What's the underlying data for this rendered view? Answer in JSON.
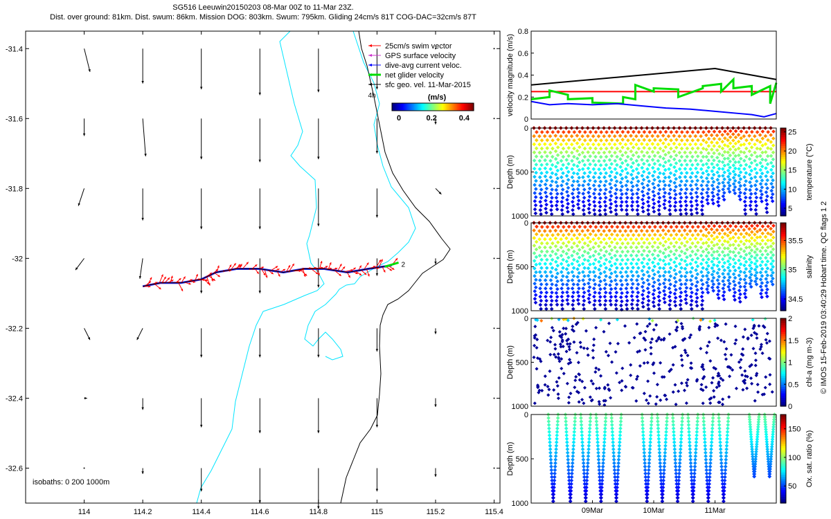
{
  "header": {
    "title_line1": "SG516 Leeuwin20150203 08-Mar 00Z to 11-Mar 23Z.",
    "title_line2": "Dist. over ground: 81km. Dist. swum: 86km. Mission DOG: 803km. Swum: 795km. Gliding 24cm/s 81T COG-DAC=32cm/s 87T"
  },
  "colors": {
    "track": "#ff0000",
    "dac": "#0000ff",
    "net": "#00dd00",
    "isobath": "#00e5ff",
    "coast": "#000000"
  },
  "chart_data": [
    {
      "type": "scatter",
      "name": "map",
      "xlim": [
        113.8,
        115.42
      ],
      "ylim": [
        -32.7,
        -31.35
      ],
      "xticks": [
        "114",
        "114.2",
        "114.4",
        "114.6",
        "114.8",
        "115",
        "115.2",
        "115.4"
      ],
      "xtick_values": [
        114,
        114.2,
        114.4,
        114.6,
        114.8,
        115,
        115.2,
        115.4
      ],
      "yticks": [
        "-31.4",
        "-31.6",
        "-31.8",
        "-32",
        "-32.2",
        "-32.4",
        "-32.6"
      ],
      "ytick_values": [
        -31.4,
        -31.6,
        -31.8,
        -32,
        -32.2,
        -32.4,
        -32.6
      ],
      "legend": [
        {
          "label": "25cm/s swim vector",
          "color": "#ff0000"
        },
        {
          "label": "GPS surface velocity",
          "color": "#cc33cc"
        },
        {
          "label": "dive-avg current veloc.",
          "color": "#0000ff"
        },
        {
          "label": "net glider velocity",
          "color": "#00dd00"
        },
        {
          "label": "sfc geo. vel. 11-Mar-2015",
          "color": "#000000"
        }
      ],
      "colorbar": {
        "label": "(m/s)",
        "ticks": [
          "0",
          "0.2",
          "0.4"
        ],
        "range": [
          0,
          0.5
        ]
      },
      "annotations": {
        "isobaths": "isobaths: 0   200   1000m",
        "label_4h": "4h",
        "label_2": "2"
      },
      "track": {
        "lon": [
          114.2,
          114.26,
          114.33,
          114.4,
          114.45,
          114.52,
          114.6,
          114.68,
          114.75,
          114.82,
          114.9,
          114.97,
          115.05
        ],
        "lat": [
          -32.08,
          -32.07,
          -32.07,
          -32.06,
          -32.04,
          -32.03,
          -32.03,
          -32.04,
          -32.03,
          -32.03,
          -32.04,
          -32.03,
          -32.02
        ]
      },
      "geo_vectors": {
        "lons": [
          114,
          114.2,
          114.4,
          114.6,
          114.8,
          115,
          115.2,
          115.4
        ],
        "lats": [
          -31.4,
          -31.6,
          -31.8,
          -32,
          -32.2,
          -32.4,
          -32.6
        ],
        "u": [
          [
            0.02,
            0.0,
            0.0,
            0.0,
            0.0,
            0.0,
            0.0,
            0.0
          ],
          [
            0.0,
            0.01,
            0.0,
            0.0,
            0.0,
            0.0,
            0.0,
            0.0
          ],
          [
            -0.02,
            0.0,
            0.0,
            0.0,
            0.0,
            0.0,
            0.02,
            0.0
          ],
          [
            -0.03,
            -0.01,
            0.0,
            0.0,
            0.0,
            0.0,
            0.0,
            0.0
          ],
          [
            0.02,
            -0.02,
            0.0,
            0.0,
            0.0,
            0.0,
            0.0,
            0.0
          ],
          [
            0.01,
            0.0,
            0.0,
            0.0,
            0.0,
            0.0,
            0.0,
            0.0
          ],
          [
            0.0,
            0.0,
            0.0,
            0.0,
            0.0,
            0.0,
            0.0,
            0.0
          ]
        ],
        "v": [
          [
            -0.08,
            -0.12,
            -0.14,
            -0.16,
            -0.15,
            -0.14,
            0.0,
            0.0
          ],
          [
            -0.06,
            -0.13,
            -0.14,
            -0.15,
            -0.14,
            -0.12,
            -0.02,
            0.0
          ],
          [
            -0.06,
            -0.11,
            -0.14,
            -0.14,
            -0.13,
            -0.1,
            -0.02,
            0.0
          ],
          [
            -0.04,
            -0.07,
            -0.12,
            -0.12,
            -0.1,
            -0.06,
            -0.02,
            0.0
          ],
          [
            -0.04,
            -0.04,
            -0.1,
            -0.1,
            -0.1,
            -0.08,
            -0.02,
            0.0
          ],
          [
            0.0,
            -0.04,
            -0.1,
            -0.12,
            -0.12,
            -0.1,
            -0.03,
            0.0
          ],
          [
            0.0,
            -0.02,
            -0.08,
            -0.12,
            -0.14,
            -0.08,
            -0.03,
            0.0
          ]
        ]
      }
    },
    {
      "type": "line",
      "name": "velocity",
      "ylabel": "velocity magnitude (m/s)",
      "ylim": [
        0,
        0.8
      ],
      "yticks": [
        "0",
        "0.2",
        "0.4",
        "0.6",
        "0.8"
      ],
      "ytick_values": [
        0,
        0.2,
        0.4,
        0.6,
        0.8
      ],
      "xlim": [
        0,
        4
      ],
      "series": [
        {
          "name": "sfc",
          "color": "#000000",
          "x": [
            0,
            3.0,
            4.0
          ],
          "y": [
            0.31,
            0.46,
            0.36
          ]
        },
        {
          "name": "swim",
          "color": "#ff0000",
          "x": [
            0,
            4.0
          ],
          "y": [
            0.25,
            0.25
          ]
        },
        {
          "name": "net",
          "color": "#00dd00",
          "x": [
            0,
            0.3,
            0.3,
            0.6,
            0.6,
            1.0,
            1.0,
            1.5,
            1.5,
            1.7,
            1.7,
            2.0,
            2.0,
            2.4,
            2.4,
            2.8,
            2.8,
            3.1,
            3.1,
            3.3,
            3.3,
            3.6,
            3.6,
            3.9,
            3.9,
            4.0
          ],
          "y": [
            0.18,
            0.2,
            0.26,
            0.22,
            0.18,
            0.19,
            0.15,
            0.14,
            0.2,
            0.18,
            0.31,
            0.25,
            0.28,
            0.27,
            0.2,
            0.28,
            0.3,
            0.32,
            0.25,
            0.36,
            0.28,
            0.3,
            0.22,
            0.3,
            0.14,
            0.33
          ]
        },
        {
          "name": "dac",
          "color": "#0000ff",
          "x": [
            0,
            0.3,
            0.6,
            1.0,
            1.4,
            1.8,
            2.2,
            2.6,
            3.0,
            3.4,
            3.6,
            3.8,
            4.0
          ],
          "y": [
            0.16,
            0.13,
            0.14,
            0.13,
            0.14,
            0.12,
            0.1,
            0.09,
            0.07,
            0.05,
            0.04,
            0.02,
            0.05
          ]
        }
      ]
    },
    {
      "type": "scatter",
      "name": "temperature",
      "ylabel": "Depth (m)",
      "cbar_label": "temperature (°C)",
      "cbar_ticks": [
        "5",
        "10",
        "15",
        "20",
        "25"
      ],
      "cbar_tick_values": [
        5,
        10,
        15,
        20,
        25
      ],
      "cbar_range": [
        3,
        26
      ],
      "ylim": [
        0,
        1000
      ],
      "yticks": [
        "0",
        "500",
        "1000"
      ],
      "ytick_values": [
        0,
        500,
        1000
      ],
      "vtop": 25,
      "vbot": 4,
      "dmax": 1000,
      "n_profiles": 45
    },
    {
      "type": "scatter",
      "name": "salinity",
      "ylabel": "Depth (m)",
      "cbar_label": "salinity",
      "cbar_ticks": [
        "34.5",
        "35",
        "35.5"
      ],
      "cbar_tick_values": [
        34.5,
        35,
        35.5
      ],
      "cbar_range": [
        34.3,
        35.8
      ],
      "ylim": [
        0,
        1000
      ],
      "yticks": [
        "0",
        "500",
        "1000"
      ],
      "ytick_values": [
        0,
        500,
        1000
      ],
      "vtop": 35.75,
      "vbot": 34.35,
      "dmax": 1000,
      "n_profiles": 45
    },
    {
      "type": "scatter",
      "name": "chla",
      "ylabel": "Depth (m)",
      "cbar_label": "chl-a (mg m-3)",
      "cbar_ticks": [
        "0",
        "0.5",
        "1",
        "1.5",
        "2"
      ],
      "cbar_tick_values": [
        0,
        0.5,
        1,
        1.5,
        2
      ],
      "cbar_range": [
        0,
        2
      ],
      "ylim": [
        0,
        1000
      ],
      "yticks": [
        "0",
        "500",
        "1000"
      ],
      "ytick_values": [
        0,
        500,
        1000
      ],
      "n_points": 380
    },
    {
      "type": "scatter",
      "name": "oxygen",
      "ylabel": "Depth (m)",
      "cbar_label": "Ox. sat. ratio (%)",
      "cbar_ticks": [
        "50",
        "100",
        "150"
      ],
      "cbar_tick_values": [
        50,
        100,
        150
      ],
      "cbar_range": [
        20,
        175
      ],
      "ylim": [
        0,
        1000
      ],
      "yticks": [
        "0",
        "500",
        "1000"
      ],
      "ytick_values": [
        0,
        500,
        1000
      ],
      "xticks": [
        "09Mar",
        "10Mar",
        "11Mar"
      ],
      "xtick_values": [
        1,
        2,
        3
      ],
      "xlim": [
        0,
        4
      ],
      "vtop": 95,
      "vbot": 30,
      "dmax": 1000
    }
  ],
  "footer": {
    "side_text": "© IMOS 15-Feb-2019 03:40:29 Hobart time. QC flags 1  2"
  }
}
